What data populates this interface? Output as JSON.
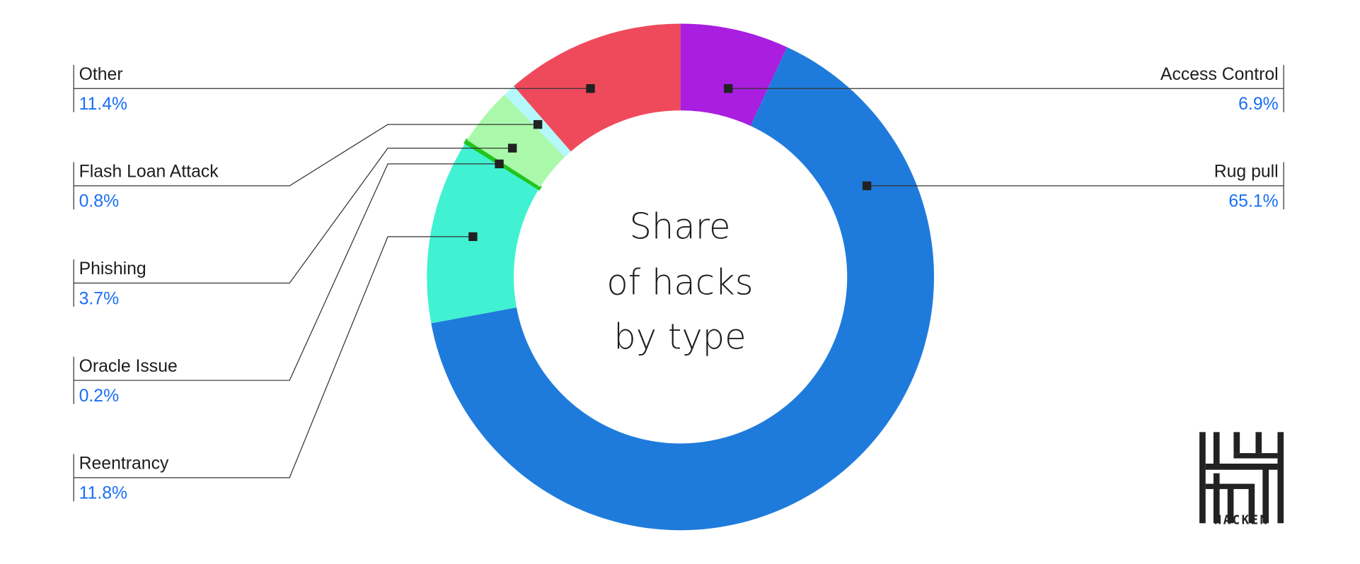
{
  "chart_data": {
    "type": "pie",
    "variant": "donut",
    "title": "Share of hacks by type",
    "title_lines": [
      "Share",
      "of hacks",
      "by type"
    ],
    "slices": [
      {
        "label": "Access Control",
        "value": 6.9,
        "value_label": "6.9%",
        "color": "#A91EDF"
      },
      {
        "label": "Rug pull",
        "value": 65.1,
        "value_label": "65.1%",
        "color": "#1F7BDB"
      },
      {
        "label": "Reentrancy",
        "value": 11.8,
        "value_label": "11.8%",
        "color": "#40F2D2"
      },
      {
        "label": "Oracle Issue",
        "value": 0.2,
        "value_label": "0.2%",
        "color": "#22C41E"
      },
      {
        "label": "Phishing",
        "value": 3.7,
        "value_label": "3.7%",
        "color": "#AAF9AA"
      },
      {
        "label": "Flash Loan Attack",
        "value": 0.8,
        "value_label": "0.8%",
        "color": "#B4F8FB"
      },
      {
        "label": "Other",
        "value": 11.4,
        "value_label": "11.4%",
        "color": "#EF4A5C"
      }
    ],
    "legend_placement": "callout labels left and right"
  },
  "brand": {
    "name": "HACKEN"
  }
}
